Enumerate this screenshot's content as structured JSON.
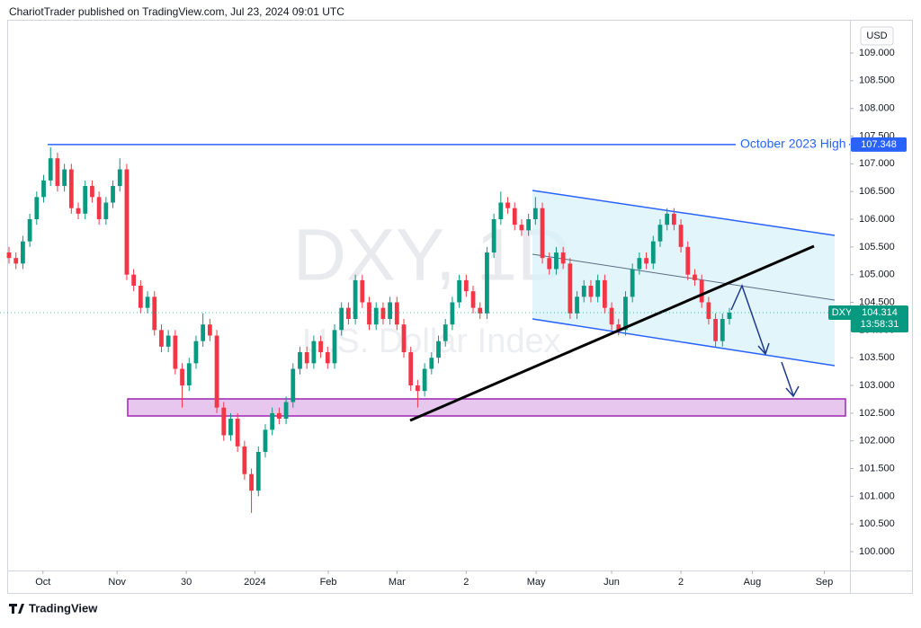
{
  "chart_data": {
    "type": "candlestick",
    "title": "ChariotTrader published on TradingView.com, Jul 23, 2024 09:01 UTC",
    "watermark": "DXY, 1D",
    "watermark_subtitle": "U.S. Dollar Index",
    "currency": "USD",
    "symbol": "DXY",
    "last_price": {
      "value": 104.314,
      "label": "104.314"
    },
    "countdown": "13:58:31",
    "resistance": {
      "label": "October 2023 High",
      "value": 107.348,
      "value_label": "107.348"
    },
    "footer": "TradingView",
    "up_color": "#089981",
    "down_color": "#f23645",
    "ylim": [
      99.66,
      109.6
    ],
    "xlim": [
      -1.3,
      121.4
    ],
    "yticks": [
      {
        "value": 100,
        "label": "100.000"
      },
      {
        "value": 100.5,
        "label": "100.500"
      },
      {
        "value": 101,
        "label": "101.000"
      },
      {
        "value": 101.5,
        "label": "101.500"
      },
      {
        "value": 102,
        "label": "102.000"
      },
      {
        "value": 102.5,
        "label": "102.500"
      },
      {
        "value": 103,
        "label": "103.000"
      },
      {
        "value": 103.5,
        "label": "103.500"
      },
      {
        "value": 104,
        "label": "104.000"
      },
      {
        "value": 104.5,
        "label": "104.500"
      },
      {
        "value": 105,
        "label": "105.000"
      },
      {
        "value": 105.5,
        "label": "105.500"
      },
      {
        "value": 106,
        "label": "106.000"
      },
      {
        "value": 106.5,
        "label": "106.500"
      },
      {
        "value": 107,
        "label": "107.000"
      },
      {
        "value": 107.5,
        "label": "107.500"
      },
      {
        "value": 108,
        "label": "108.000"
      },
      {
        "value": 108.5,
        "label": "108.500"
      },
      {
        "value": 109,
        "label": "109.000"
      }
    ],
    "xticks": [
      {
        "value": 4.9,
        "label": "Oct"
      },
      {
        "value": 15.6,
        "label": "Nov"
      },
      {
        "value": 25.6,
        "label": "30"
      },
      {
        "value": 35.5,
        "label": "2024"
      },
      {
        "value": 46.1,
        "label": "Feb"
      },
      {
        "value": 56.0,
        "label": "Mar"
      },
      {
        "value": 66.0,
        "label": "2"
      },
      {
        "value": 76.1,
        "label": "May"
      },
      {
        "value": 87.0,
        "label": "Jun"
      },
      {
        "value": 97.0,
        "label": "2"
      },
      {
        "value": 107.3,
        "label": "Aug"
      },
      {
        "value": 117.7,
        "label": "Sep"
      }
    ],
    "ohlc": [
      [
        105.4,
        105.5,
        105.2,
        105.3
      ],
      [
        105.3,
        105.4,
        105.1,
        105.2
      ],
      [
        105.2,
        105.7,
        105.1,
        105.6
      ],
      [
        105.6,
        106.1,
        105.5,
        106.0
      ],
      [
        106.0,
        106.5,
        105.9,
        106.4
      ],
      [
        106.4,
        106.8,
        106.3,
        106.7
      ],
      [
        106.7,
        107.3,
        106.6,
        107.1
      ],
      [
        107.1,
        107.2,
        106.5,
        106.6
      ],
      [
        106.6,
        107.0,
        106.5,
        106.9
      ],
      [
        106.9,
        107.0,
        106.1,
        106.2
      ],
      [
        106.2,
        106.3,
        106.0,
        106.1
      ],
      [
        106.1,
        106.7,
        106.0,
        106.6
      ],
      [
        106.6,
        106.7,
        106.3,
        106.4
      ],
      [
        106.4,
        106.5,
        105.9,
        106.0
      ],
      [
        106.0,
        106.4,
        105.9,
        106.3
      ],
      [
        106.3,
        106.7,
        106.2,
        106.6
      ],
      [
        106.6,
        107.1,
        106.5,
        106.9
      ],
      [
        106.9,
        107.0,
        104.9,
        105.0
      ],
      [
        105.0,
        105.1,
        104.7,
        104.8
      ],
      [
        104.8,
        104.9,
        104.3,
        104.4
      ],
      [
        104.4,
        104.7,
        104.3,
        104.6
      ],
      [
        104.6,
        104.7,
        103.9,
        104.0
      ],
      [
        104.0,
        104.1,
        103.6,
        103.7
      ],
      [
        103.7,
        104.0,
        103.6,
        103.9
      ],
      [
        103.9,
        104.0,
        103.2,
        103.3
      ],
      [
        103.3,
        103.4,
        102.6,
        103.0
      ],
      [
        103.0,
        103.5,
        102.9,
        103.4
      ],
      [
        103.4,
        103.9,
        103.3,
        103.8
      ],
      [
        103.8,
        104.3,
        103.7,
        104.1
      ],
      [
        104.1,
        104.2,
        103.8,
        103.9
      ],
      [
        103.9,
        104.0,
        102.5,
        102.6
      ],
      [
        102.6,
        102.7,
        102.0,
        102.1
      ],
      [
        102.1,
        102.5,
        102.0,
        102.4
      ],
      [
        102.4,
        102.5,
        101.8,
        101.9
      ],
      [
        101.9,
        102.0,
        101.3,
        101.4
      ],
      [
        101.4,
        101.5,
        100.7,
        101.1
      ],
      [
        101.1,
        101.9,
        101.0,
        101.8
      ],
      [
        101.8,
        102.3,
        101.7,
        102.2
      ],
      [
        102.2,
        102.6,
        102.1,
        102.5
      ],
      [
        102.5,
        102.6,
        102.3,
        102.4
      ],
      [
        102.4,
        102.8,
        102.3,
        102.7
      ],
      [
        102.7,
        103.4,
        102.6,
        103.3
      ],
      [
        103.3,
        103.7,
        103.2,
        103.6
      ],
      [
        103.6,
        103.7,
        103.3,
        103.4
      ],
      [
        103.4,
        103.9,
        103.3,
        103.8
      ],
      [
        103.8,
        103.9,
        103.5,
        103.6
      ],
      [
        103.6,
        103.7,
        103.3,
        103.4
      ],
      [
        103.4,
        104.1,
        103.3,
        104.0
      ],
      [
        104.0,
        104.5,
        103.9,
        104.4
      ],
      [
        104.4,
        104.5,
        104.1,
        104.2
      ],
      [
        104.2,
        105.0,
        104.1,
        104.9
      ],
      [
        104.9,
        105.0,
        104.4,
        104.5
      ],
      [
        104.5,
        104.6,
        104.0,
        104.1
      ],
      [
        104.1,
        104.5,
        104.0,
        104.4
      ],
      [
        104.4,
        104.5,
        104.1,
        104.2
      ],
      [
        104.2,
        104.6,
        104.1,
        104.5
      ],
      [
        104.5,
        104.6,
        104.0,
        104.1
      ],
      [
        104.1,
        104.2,
        103.5,
        103.6
      ],
      [
        103.6,
        103.7,
        102.9,
        103.0
      ],
      [
        103.0,
        103.1,
        102.6,
        102.9
      ],
      [
        102.9,
        103.4,
        102.8,
        103.3
      ],
      [
        103.3,
        103.6,
        103.2,
        103.5
      ],
      [
        103.5,
        103.9,
        103.4,
        103.8
      ],
      [
        103.8,
        104.2,
        103.7,
        104.1
      ],
      [
        104.1,
        104.6,
        104.0,
        104.5
      ],
      [
        104.5,
        105.0,
        104.4,
        104.9
      ],
      [
        104.9,
        105.0,
        104.6,
        104.7
      ],
      [
        104.7,
        104.8,
        104.3,
        104.4
      ],
      [
        104.4,
        104.5,
        104.2,
        104.3
      ],
      [
        104.3,
        105.5,
        104.2,
        105.4
      ],
      [
        105.4,
        106.1,
        105.3,
        106.0
      ],
      [
        106.0,
        106.5,
        105.9,
        106.3
      ],
      [
        106.3,
        106.4,
        106.1,
        106.2
      ],
      [
        106.2,
        106.3,
        105.8,
        105.9
      ],
      [
        105.9,
        106.0,
        105.7,
        105.8
      ],
      [
        105.8,
        106.1,
        105.7,
        106.0
      ],
      [
        106.0,
        106.4,
        105.9,
        106.2
      ],
      [
        106.2,
        106.3,
        105.2,
        105.3
      ],
      [
        105.3,
        105.4,
        105.0,
        105.1
      ],
      [
        105.1,
        105.5,
        105.0,
        105.4
      ],
      [
        105.4,
        105.5,
        105.1,
        105.2
      ],
      [
        105.2,
        105.3,
        104.2,
        104.3
      ],
      [
        104.3,
        104.7,
        104.2,
        104.6
      ],
      [
        104.6,
        104.9,
        104.5,
        104.8
      ],
      [
        104.8,
        104.9,
        104.5,
        104.6
      ],
      [
        104.6,
        105.0,
        104.5,
        104.9
      ],
      [
        104.9,
        105.0,
        104.3,
        104.4
      ],
      [
        104.4,
        104.5,
        104.0,
        104.1
      ],
      [
        104.1,
        104.2,
        103.9,
        104.0
      ],
      [
        104.0,
        104.7,
        103.9,
        104.6
      ],
      [
        104.6,
        105.2,
        104.5,
        105.1
      ],
      [
        105.1,
        105.4,
        105.0,
        105.3
      ],
      [
        105.3,
        105.4,
        105.1,
        105.2
      ],
      [
        105.2,
        105.7,
        105.1,
        105.6
      ],
      [
        105.6,
        106.0,
        105.5,
        105.9
      ],
      [
        105.9,
        106.2,
        105.8,
        106.1
      ],
      [
        106.1,
        106.2,
        105.8,
        105.9
      ],
      [
        105.9,
        106.0,
        105.4,
        105.5
      ],
      [
        105.5,
        105.6,
        104.9,
        105.0
      ],
      [
        105.0,
        105.1,
        104.8,
        104.9
      ],
      [
        104.9,
        105.0,
        104.4,
        104.5
      ],
      [
        104.5,
        104.6,
        104.1,
        104.2
      ],
      [
        104.2,
        104.3,
        103.7,
        103.8
      ],
      [
        103.8,
        104.3,
        103.7,
        104.2
      ],
      [
        104.2,
        104.4,
        104.1,
        104.314
      ]
    ]
  }
}
